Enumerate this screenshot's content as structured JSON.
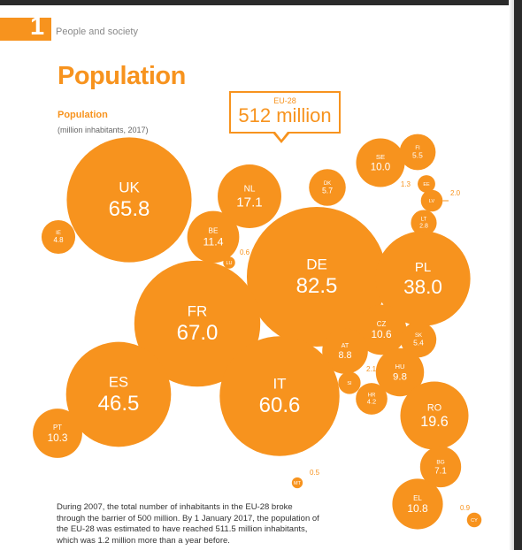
{
  "header": {
    "chapter_number": "1",
    "chapter_title": "People and society"
  },
  "title": "Population",
  "subtitle": "Population",
  "unit_note": "(million inhabitants, 2017)",
  "callout": {
    "label": "EU-28",
    "value": "512 million"
  },
  "colors": {
    "accent": "#f7931e",
    "bubble_text": "#ffffff"
  },
  "chart_data": {
    "type": "bubble",
    "unit": "million inhabitants",
    "countries": [
      {
        "code": "UK",
        "value": "65.8"
      },
      {
        "code": "IE",
        "value": "4.8"
      },
      {
        "code": "NL",
        "value": "17.1"
      },
      {
        "code": "BE",
        "value": "11.4"
      },
      {
        "code": "LU",
        "value": "0.6"
      },
      {
        "code": "DK",
        "value": "5.7"
      },
      {
        "code": "SE",
        "value": "10.0"
      },
      {
        "code": "FI",
        "value": "5.5"
      },
      {
        "code": "EE",
        "value": "1.3"
      },
      {
        "code": "LV",
        "value": "2.0"
      },
      {
        "code": "LT",
        "value": "2.8"
      },
      {
        "code": "DE",
        "value": "82.5"
      },
      {
        "code": "PL",
        "value": "38.0"
      },
      {
        "code": "FR",
        "value": "67.0"
      },
      {
        "code": "CZ",
        "value": "10.6"
      },
      {
        "code": "SK",
        "value": "5.4"
      },
      {
        "code": "AT",
        "value": "8.8"
      },
      {
        "code": "SI",
        "value": "2.1"
      },
      {
        "code": "HU",
        "value": "9.8"
      },
      {
        "code": "HR",
        "value": "4.2"
      },
      {
        "code": "ES",
        "value": "46.5"
      },
      {
        "code": "IT",
        "value": "60.6"
      },
      {
        "code": "RO",
        "value": "19.6"
      },
      {
        "code": "PT",
        "value": "10.3"
      },
      {
        "code": "BG",
        "value": "7.1"
      },
      {
        "code": "MT",
        "value": "0.5"
      },
      {
        "code": "EL",
        "value": "10.8"
      },
      {
        "code": "CY",
        "value": "0.9"
      }
    ]
  },
  "footer": {
    "text": "During 2007, the total number of inhabitants in the EU-28 broke through the barrier of 500 million. By 1 January 2017, the population of the EU-28 was estimated to have reached 511.5 million inhabitants, which was 1.2 million more than a year before."
  }
}
